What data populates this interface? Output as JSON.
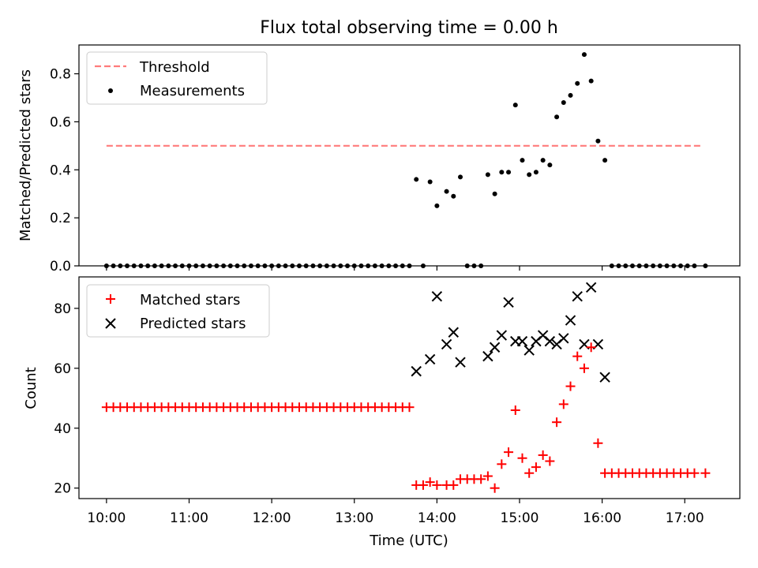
{
  "title": "Flux total observing time = 0.00 h",
  "colors": {
    "threshold": "#ff7b7b",
    "measurement": "#000000",
    "matched": "#ff0000",
    "predicted": "#000000"
  },
  "chart_data": [
    {
      "type": "scatter",
      "ylabel": "Matched/Predicted stars",
      "xlim": [
        "09:40",
        "17:40"
      ],
      "ylim": [
        0,
        0.92
      ],
      "yticks": [
        0.0,
        0.2,
        0.4,
        0.6,
        0.8
      ],
      "ytick_labels": [
        "0.0",
        "0.2",
        "0.4",
        "0.6",
        "0.8"
      ],
      "legend_position": "upper-left",
      "threshold": {
        "name": "Threshold",
        "value": 0.5,
        "x_start": "10:00",
        "x_end": "17:12",
        "style": "dashed"
      },
      "measurements": {
        "name": "Measurements",
        "points": [
          [
            "10:00",
            0
          ],
          [
            "10:05",
            0
          ],
          [
            "10:10",
            0
          ],
          [
            "10:15",
            0
          ],
          [
            "10:20",
            0
          ],
          [
            "10:25",
            0
          ],
          [
            "10:30",
            0
          ],
          [
            "10:35",
            0
          ],
          [
            "10:40",
            0
          ],
          [
            "10:45",
            0
          ],
          [
            "10:50",
            0
          ],
          [
            "10:55",
            0
          ],
          [
            "11:00",
            0
          ],
          [
            "11:05",
            0
          ],
          [
            "11:10",
            0
          ],
          [
            "11:15",
            0
          ],
          [
            "11:20",
            0
          ],
          [
            "11:25",
            0
          ],
          [
            "11:30",
            0
          ],
          [
            "11:35",
            0
          ],
          [
            "11:40",
            0
          ],
          [
            "11:45",
            0
          ],
          [
            "11:50",
            0
          ],
          [
            "11:55",
            0
          ],
          [
            "12:00",
            0
          ],
          [
            "12:05",
            0
          ],
          [
            "12:10",
            0
          ],
          [
            "12:15",
            0
          ],
          [
            "12:20",
            0
          ],
          [
            "12:25",
            0
          ],
          [
            "12:30",
            0
          ],
          [
            "12:35",
            0
          ],
          [
            "12:40",
            0
          ],
          [
            "12:45",
            0
          ],
          [
            "12:50",
            0
          ],
          [
            "12:55",
            0
          ],
          [
            "13:00",
            0
          ],
          [
            "13:05",
            0
          ],
          [
            "13:10",
            0
          ],
          [
            "13:15",
            0
          ],
          [
            "13:20",
            0
          ],
          [
            "13:25",
            0
          ],
          [
            "13:30",
            0
          ],
          [
            "13:35",
            0
          ],
          [
            "13:40",
            0
          ],
          [
            "13:45",
            0.36
          ],
          [
            "13:50",
            0
          ],
          [
            "13:55",
            0.35
          ],
          [
            "14:00",
            0.25
          ],
          [
            "14:07",
            0.31
          ],
          [
            "14:12",
            0.29
          ],
          [
            "14:17",
            0.37
          ],
          [
            "14:22",
            0
          ],
          [
            "14:27",
            0
          ],
          [
            "14:32",
            0
          ],
          [
            "14:37",
            0.38
          ],
          [
            "14:42",
            0.3
          ],
          [
            "14:47",
            0.39
          ],
          [
            "14:52",
            0.39
          ],
          [
            "14:57",
            0.67
          ],
          [
            "15:02",
            0.44
          ],
          [
            "15:07",
            0.38
          ],
          [
            "15:12",
            0.39
          ],
          [
            "15:17",
            0.44
          ],
          [
            "15:22",
            0.42
          ],
          [
            "15:27",
            0.62
          ],
          [
            "15:32",
            0.68
          ],
          [
            "15:37",
            0.71
          ],
          [
            "15:42",
            0.76
          ],
          [
            "15:47",
            0.88
          ],
          [
            "15:52",
            0.77
          ],
          [
            "15:57",
            0.52
          ],
          [
            "16:02",
            0.44
          ],
          [
            "16:07",
            0
          ],
          [
            "16:12",
            0
          ],
          [
            "16:17",
            0
          ],
          [
            "16:22",
            0
          ],
          [
            "16:27",
            0
          ],
          [
            "16:32",
            0
          ],
          [
            "16:37",
            0
          ],
          [
            "16:42",
            0
          ],
          [
            "16:47",
            0
          ],
          [
            "16:52",
            0
          ],
          [
            "16:57",
            0
          ],
          [
            "17:02",
            0
          ],
          [
            "17:07",
            0
          ],
          [
            "17:15",
            0
          ]
        ]
      }
    },
    {
      "type": "scatter",
      "xlabel": "Time (UTC)",
      "ylabel": "Count",
      "xlim": [
        "09:40",
        "17:40"
      ],
      "ylim": [
        16.5,
        90.5
      ],
      "yticks": [
        20,
        40,
        60,
        80
      ],
      "ytick_labels": [
        "20",
        "40",
        "60",
        "80"
      ],
      "xticks": [
        "10:00",
        "11:00",
        "12:00",
        "13:00",
        "14:00",
        "15:00",
        "16:00",
        "17:00"
      ],
      "legend_position": "upper-left",
      "series": [
        {
          "name": "Matched stars",
          "marker": "plus",
          "points": [
            [
              "10:00",
              47
            ],
            [
              "10:05",
              47
            ],
            [
              "10:10",
              47
            ],
            [
              "10:15",
              47
            ],
            [
              "10:20",
              47
            ],
            [
              "10:25",
              47
            ],
            [
              "10:30",
              47
            ],
            [
              "10:35",
              47
            ],
            [
              "10:40",
              47
            ],
            [
              "10:45",
              47
            ],
            [
              "10:50",
              47
            ],
            [
              "10:55",
              47
            ],
            [
              "11:00",
              47
            ],
            [
              "11:05",
              47
            ],
            [
              "11:10",
              47
            ],
            [
              "11:15",
              47
            ],
            [
              "11:20",
              47
            ],
            [
              "11:25",
              47
            ],
            [
              "11:30",
              47
            ],
            [
              "11:35",
              47
            ],
            [
              "11:40",
              47
            ],
            [
              "11:45",
              47
            ],
            [
              "11:50",
              47
            ],
            [
              "11:55",
              47
            ],
            [
              "12:00",
              47
            ],
            [
              "12:05",
              47
            ],
            [
              "12:10",
              47
            ],
            [
              "12:15",
              47
            ],
            [
              "12:20",
              47
            ],
            [
              "12:25",
              47
            ],
            [
              "12:30",
              47
            ],
            [
              "12:35",
              47
            ],
            [
              "12:40",
              47
            ],
            [
              "12:45",
              47
            ],
            [
              "12:50",
              47
            ],
            [
              "12:55",
              47
            ],
            [
              "13:00",
              47
            ],
            [
              "13:05",
              47
            ],
            [
              "13:10",
              47
            ],
            [
              "13:15",
              47
            ],
            [
              "13:20",
              47
            ],
            [
              "13:25",
              47
            ],
            [
              "13:30",
              47
            ],
            [
              "13:35",
              47
            ],
            [
              "13:40",
              47
            ],
            [
              "13:45",
              21
            ],
            [
              "13:50",
              21
            ],
            [
              "13:55",
              22
            ],
            [
              "14:00",
              21
            ],
            [
              "14:07",
              21
            ],
            [
              "14:12",
              21
            ],
            [
              "14:17",
              23
            ],
            [
              "14:22",
              23
            ],
            [
              "14:27",
              23
            ],
            [
              "14:32",
              23
            ],
            [
              "14:37",
              24
            ],
            [
              "14:42",
              20
            ],
            [
              "14:47",
              28
            ],
            [
              "14:52",
              32
            ],
            [
              "14:57",
              46
            ],
            [
              "15:02",
              30
            ],
            [
              "15:07",
              25
            ],
            [
              "15:12",
              27
            ],
            [
              "15:17",
              31
            ],
            [
              "15:22",
              29
            ],
            [
              "15:27",
              42
            ],
            [
              "15:32",
              48
            ],
            [
              "15:37",
              54
            ],
            [
              "15:42",
              64
            ],
            [
              "15:47",
              60
            ],
            [
              "15:52",
              67
            ],
            [
              "15:57",
              35
            ],
            [
              "16:02",
              25
            ],
            [
              "16:07",
              25
            ],
            [
              "16:12",
              25
            ],
            [
              "16:17",
              25
            ],
            [
              "16:22",
              25
            ],
            [
              "16:27",
              25
            ],
            [
              "16:32",
              25
            ],
            [
              "16:37",
              25
            ],
            [
              "16:42",
              25
            ],
            [
              "16:47",
              25
            ],
            [
              "16:52",
              25
            ],
            [
              "16:57",
              25
            ],
            [
              "17:02",
              25
            ],
            [
              "17:07",
              25
            ],
            [
              "17:15",
              25
            ]
          ]
        },
        {
          "name": "Predicted stars",
          "marker": "x",
          "points": [
            [
              "13:45",
              59
            ],
            [
              "13:55",
              63
            ],
            [
              "14:00",
              84
            ],
            [
              "14:07",
              68
            ],
            [
              "14:12",
              72
            ],
            [
              "14:17",
              62
            ],
            [
              "14:37",
              64
            ],
            [
              "14:42",
              67
            ],
            [
              "14:47",
              71
            ],
            [
              "14:52",
              82
            ],
            [
              "14:57",
              69
            ],
            [
              "15:02",
              69
            ],
            [
              "15:07",
              66
            ],
            [
              "15:12",
              69
            ],
            [
              "15:17",
              71
            ],
            [
              "15:22",
              69
            ],
            [
              "15:27",
              68
            ],
            [
              "15:32",
              70
            ],
            [
              "15:37",
              76
            ],
            [
              "15:42",
              84
            ],
            [
              "15:47",
              68
            ],
            [
              "15:52",
              87
            ],
            [
              "15:57",
              68
            ],
            [
              "16:02",
              57
            ]
          ]
        }
      ]
    }
  ]
}
